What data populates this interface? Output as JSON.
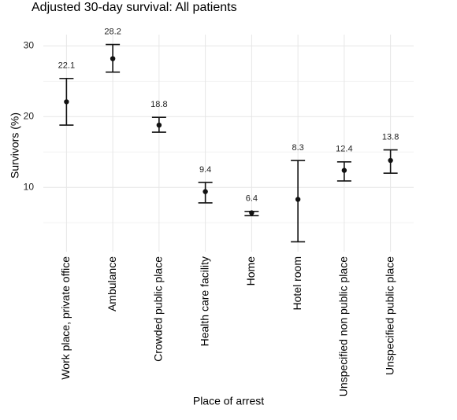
{
  "chart_data": {
    "type": "errorbar",
    "title": "Adjusted 30-day  survival: All patients",
    "x_label": "Place of arrest",
    "y_label": "Survivors (%)",
    "categories": [
      "Work place, private office",
      "Ambulance",
      "Crowded public place",
      "Health care facility",
      "Home",
      "Hotel room",
      "Unspecified non public place",
      "Unspecified public place"
    ],
    "values": [
      22.1,
      28.2,
      18.8,
      9.4,
      6.4,
      8.3,
      12.4,
      13.8
    ],
    "lower": [
      18.8,
      26.3,
      17.8,
      7.8,
      6.0,
      2.3,
      10.9,
      12.0
    ],
    "upper": [
      25.4,
      30.2,
      19.9,
      10.7,
      6.6,
      13.8,
      13.6,
      15.3
    ],
    "color": "#111111",
    "ylim": [
      0.9,
      31.6
    ],
    "yticks": [
      10,
      20,
      30
    ],
    "minor_yticks": [
      5,
      15,
      25
    ],
    "grid": true
  }
}
